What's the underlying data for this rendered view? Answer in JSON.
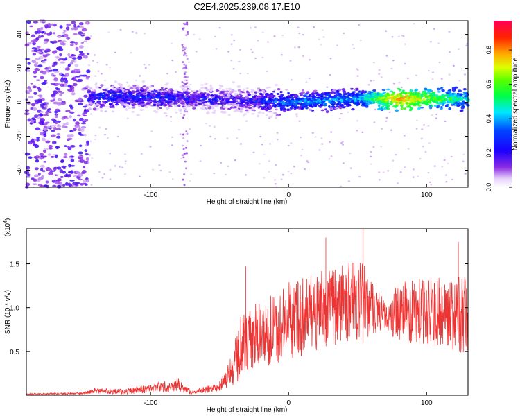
{
  "title": "C2E4.2025.239.08.17.E10",
  "colors": {
    "snr_line": "#ee3333",
    "background": "#ffffff",
    "axis": "#000000"
  },
  "chart_data": [
    {
      "type": "heatmap",
      "xlabel": "Height of straight line (km)",
      "ylabel": "Frequency (Hz)",
      "xlim": [
        -190,
        130
      ],
      "ylim": [
        -50,
        48
      ],
      "xticks": [
        -100,
        0,
        100
      ],
      "yticks": [
        40,
        20,
        0,
        -20,
        -40
      ],
      "grid": false,
      "colorbar": {
        "label": "Normalized spectral amplitude",
        "range": [
          0.0,
          0.97
        ],
        "ticks": [
          0.0,
          0.2,
          0.4,
          0.6,
          0.8
        ],
        "tick_labels": [
          "0.0",
          "0.2",
          "0.4",
          "0.6",
          "0.8"
        ],
        "colormap": "rainbow (violet to red)"
      },
      "description_series": [
        {
          "name": "noise_band_start",
          "x": [
            -190,
            -145
          ],
          "freq_range": [
            -50,
            48
          ],
          "level": 0.2
        },
        {
          "name": "main_band",
          "x": [
            -145,
            130
          ],
          "freq_center": [
            3,
            3,
            2,
            1,
            0,
            2,
            2,
            2
          ],
          "x_knots": [
            -145,
            -100,
            -60,
            -30,
            0,
            50,
            80,
            130
          ],
          "level_knots": [
            0.35,
            0.35,
            0.3,
            0.3,
            0.45,
            0.5,
            0.9,
            0.55
          ]
        }
      ]
    },
    {
      "type": "line",
      "xlabel": "Height of straight line (km)",
      "ylabel": "SNR (10 * v/v)",
      "y_multiplier": "(x10",
      "y_multiplier_exp": "4",
      "y_multiplier_close": ")",
      "xlim": [
        -190,
        130
      ],
      "ylim": [
        0,
        1.9
      ],
      "xticks": [
        -100,
        0,
        100
      ],
      "yticks": [
        0.5,
        1.0,
        1.5
      ],
      "ytick_labels": [
        "0.5",
        "1.0",
        "1.5"
      ],
      "xtick_labels": [
        "-100",
        "0",
        "100"
      ],
      "grid": false,
      "series": [
        {
          "name": "SNR",
          "envelope_x": [
            -190,
            -150,
            -140,
            -120,
            -100,
            -80,
            -70,
            -50,
            -40,
            -35,
            -30,
            -20,
            -10,
            0,
            20,
            40,
            55,
            70,
            80,
            100,
            115,
            130
          ],
          "envelope_mean": [
            0.01,
            0.02,
            0.05,
            0.04,
            0.08,
            0.12,
            0.03,
            0.1,
            0.3,
            0.55,
            0.6,
            0.7,
            0.75,
            0.85,
            0.95,
            1.05,
            1.1,
            0.9,
            0.95,
            0.95,
            0.95,
            0.9
          ],
          "envelope_spread": [
            0.01,
            0.01,
            0.03,
            0.03,
            0.05,
            0.08,
            0.02,
            0.06,
            0.2,
            0.4,
            0.35,
            0.4,
            0.4,
            0.45,
            0.45,
            0.45,
            0.45,
            0.15,
            0.35,
            0.4,
            0.4,
            0.45
          ],
          "peaks": [
            {
              "x": -31,
              "y": 1.47
            },
            {
              "x": 27,
              "y": 1.8
            },
            {
              "x": 54,
              "y": 1.9
            },
            {
              "x": 123,
              "y": 1.75
            }
          ]
        }
      ]
    }
  ],
  "ticklabels": {
    "top_x": [
      "-100",
      "0",
      "100"
    ],
    "top_y": [
      "40",
      "20",
      "0",
      "-20",
      "-40"
    ],
    "cb": [
      "0.0",
      "0.2",
      "0.4",
      "0.6",
      "0.8"
    ]
  }
}
